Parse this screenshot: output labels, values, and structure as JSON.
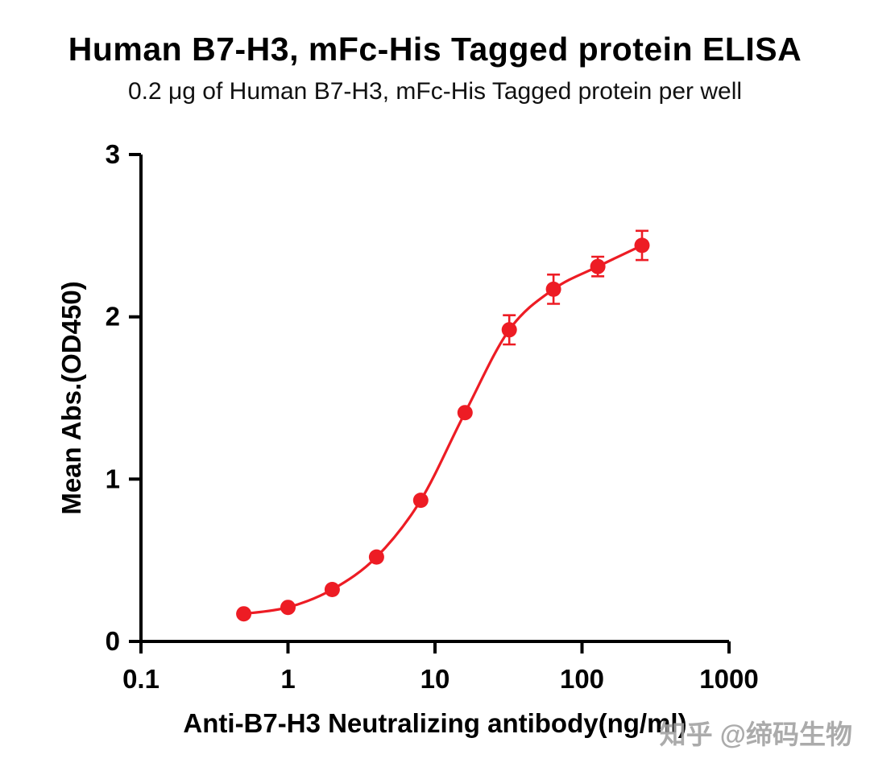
{
  "chart": {
    "title": "Human B7-H3,  mFc-His Tagged protein ELISA",
    "subtitle": "0.2 μg of Human B7-H3, mFc-His Tagged protein per well"
  },
  "watermark": {
    "text": "知乎 @缔码生物"
  },
  "chart_data": {
    "type": "scatter",
    "x": [
      0.5,
      1,
      2,
      4,
      8,
      16,
      32,
      64,
      128,
      256
    ],
    "y": [
      0.17,
      0.21,
      0.32,
      0.52,
      0.87,
      1.41,
      1.92,
      2.17,
      2.31,
      2.44
    ],
    "yerr": [
      0,
      0,
      0,
      0,
      0,
      0,
      0.09,
      0.09,
      0.06,
      0.09
    ],
    "title": "Human B7-H3,  mFc-His Tagged protein ELISA",
    "subtitle": "0.2 μg of Human B7-H3, mFc-His Tagged protein per well",
    "xlabel": "Anti-B7-H3 Neutralizing antibody(ng/ml)",
    "ylabel": "Mean Abs.(OD450)",
    "x_scale": "log",
    "xlim": [
      0.1,
      1000
    ],
    "ylim": [
      0,
      3
    ],
    "x_ticks": [
      0.1,
      1,
      10,
      100,
      1000
    ],
    "x_tick_labels": [
      "0.1",
      "1",
      "10",
      "100",
      "1000"
    ],
    "y_ticks": [
      0,
      1,
      2,
      3
    ],
    "y_tick_labels": [
      "0",
      "1",
      "2",
      "3"
    ],
    "grid": false,
    "legend": null,
    "series_color": "#ED1C24",
    "axis_color": "#000000",
    "curve_style": "sigmoid-fit-through-points"
  }
}
